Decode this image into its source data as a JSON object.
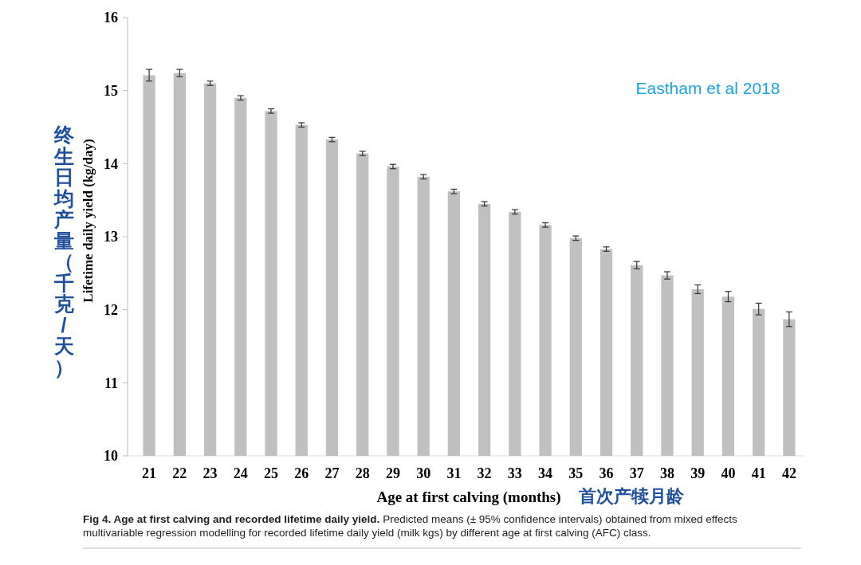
{
  "chart_data": {
    "type": "bar",
    "categories": [
      "21",
      "22",
      "23",
      "24",
      "25",
      "26",
      "27",
      "28",
      "29",
      "30",
      "31",
      "32",
      "33",
      "34",
      "35",
      "36",
      "37",
      "38",
      "39",
      "40",
      "41",
      "42"
    ],
    "values": [
      15.21,
      15.24,
      15.1,
      14.9,
      14.72,
      14.53,
      14.33,
      14.14,
      13.96,
      13.82,
      13.62,
      13.45,
      13.34,
      13.16,
      12.98,
      12.83,
      12.61,
      12.47,
      12.28,
      12.18,
      12.01,
      11.87
    ],
    "errors": [
      0.08,
      0.05,
      0.03,
      0.03,
      0.03,
      0.03,
      0.03,
      0.03,
      0.03,
      0.03,
      0.03,
      0.03,
      0.03,
      0.03,
      0.03,
      0.03,
      0.05,
      0.05,
      0.06,
      0.07,
      0.08,
      0.1
    ],
    "color": "#c0c0c0",
    "ylim": [
      10,
      16
    ],
    "yticks": [
      10,
      11,
      12,
      13,
      14,
      15,
      16
    ],
    "ylabel": "Lifetime daily yield (kg/day)",
    "xlabel": "Age at first calving (months)",
    "annotations": [
      "Eastham et al 2018",
      "终生日均产量（千克/天）",
      "首次产犊月龄",
      "Fig 4. Age at first calving and recorded lifetime daily yield.",
      "Predicted means (± 95% confidence intervals) obtained from mixed effects multivariable regression modelling for recorded lifetime daily yield (milk kgs) by different age at first calving (AFC) class."
    ],
    "grid": false
  }
}
